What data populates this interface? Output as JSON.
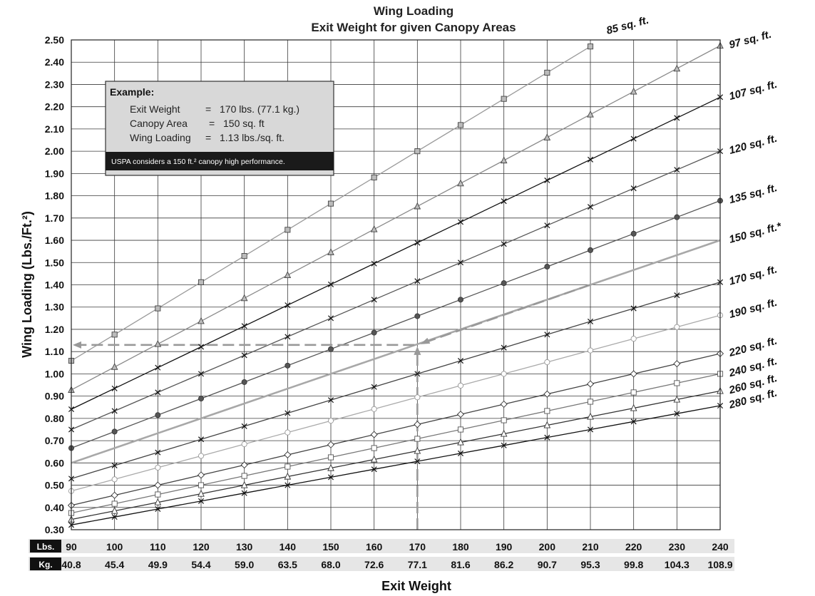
{
  "chart_data": {
    "type": "line",
    "title": "Wing Loading",
    "subtitle": "Exit Weight for given Canopy Areas",
    "xlabel": "Exit Weight",
    "ylabel": "Wing Loading (Lbs./Ft.²)",
    "xlim": [
      90,
      240
    ],
    "ylim": [
      0.3,
      2.5
    ],
    "grid": true,
    "x": [
      90,
      100,
      110,
      120,
      130,
      140,
      150,
      160,
      170,
      180,
      190,
      200,
      210,
      220,
      230,
      240
    ],
    "kg_ticks": [
      "40.8",
      "45.4",
      "49.9",
      "54.4",
      "59.0",
      "63.5",
      "68.0",
      "72.6",
      "77.1",
      "81.6",
      "86.2",
      "90.7",
      "95.3",
      "99.8",
      "104.3",
      "108.9"
    ],
    "y_ticks": [
      "0.30",
      "0.40",
      "0.50",
      "0.60",
      "0.70",
      "0.80",
      "0.90",
      "1.00",
      "1.10",
      "1.20",
      "1.30",
      "1.40",
      "1.50",
      "1.60",
      "1.70",
      "1.80",
      "1.90",
      "2.00",
      "2.10",
      "2.20",
      "2.30",
      "2.40",
      "2.50"
    ],
    "lbs_label": "Lbs.",
    "kg_label": "Kg.",
    "series": [
      {
        "name": "85 sq. ft.",
        "area": 85,
        "marker": "square",
        "color": "#9a9a9a"
      },
      {
        "name": "97 sq. ft.",
        "area": 97,
        "marker": "triangle",
        "color": "#8a8a8a"
      },
      {
        "name": "107 sq. ft.",
        "area": 107,
        "marker": "x",
        "color": "#111111"
      },
      {
        "name": "120 sq. ft.",
        "area": 120,
        "marker": "x",
        "color": "#555555"
      },
      {
        "name": "135 sq. ft.",
        "area": 135,
        "marker": "circle",
        "color": "#555555"
      },
      {
        "name": "150 sq. ft.*",
        "area": 150,
        "marker": "none",
        "color": "#a8a8a8"
      },
      {
        "name": "170 sq. ft.",
        "area": 170,
        "marker": "x",
        "color": "#444444"
      },
      {
        "name": "190 sq. ft.",
        "area": 190,
        "marker": "circle-open",
        "color": "#aaaaaa"
      },
      {
        "name": "220 sq. ft.",
        "area": 220,
        "marker": "diamond",
        "color": "#444444"
      },
      {
        "name": "240 sq. ft.",
        "area": 240,
        "marker": "square-open",
        "color": "#777777"
      },
      {
        "name": "260 sq. ft.",
        "area": 260,
        "marker": "triangle-open",
        "color": "#333333"
      },
      {
        "name": "280 sq. ft.",
        "area": 280,
        "marker": "x",
        "color": "#111111"
      }
    ],
    "annotation": {
      "exit_weight": 170,
      "wing_loading": 1.13,
      "color": "#999999"
    }
  },
  "example": {
    "heading": "Example:",
    "rows": [
      {
        "label": "Exit Weight",
        "eq": "=",
        "value": "170 lbs. (77.1 kg.)"
      },
      {
        "label": "Canopy Area",
        "eq": "=",
        "value": "150 sq. ft"
      },
      {
        "label": "Wing Loading",
        "eq": "=",
        "value": "1.13 lbs./sq. ft."
      }
    ],
    "note": "USPA considers a 150 ft.² canopy high performance."
  }
}
